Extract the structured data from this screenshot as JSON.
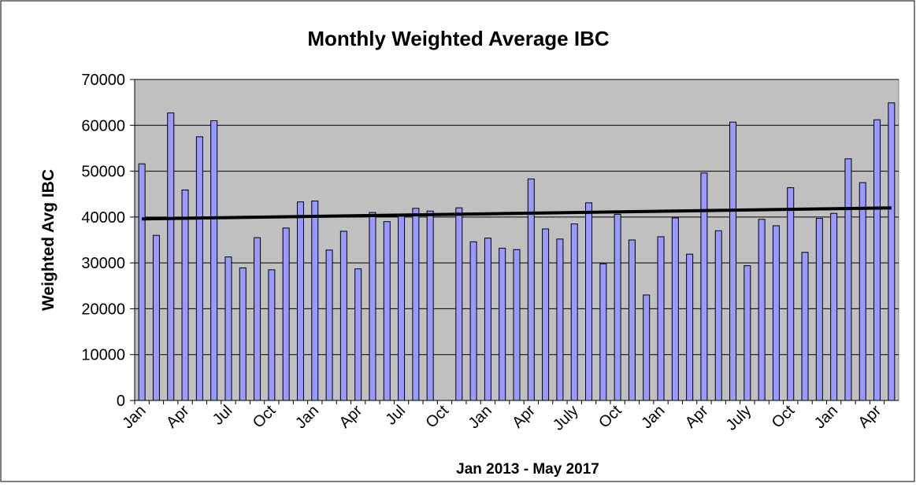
{
  "chart_data": {
    "type": "bar",
    "title": "Monthly Weighted Average IBC",
    "x_label": "Jan 2013 - May 2017",
    "y_label": "Weighted Avg IBC",
    "categories": [
      "Jan",
      null,
      null,
      "Apr",
      null,
      null,
      "Jul",
      null,
      null,
      "Oct",
      null,
      null,
      "Jan",
      null,
      null,
      "Apr",
      null,
      null,
      "Jul",
      null,
      null,
      "Oct",
      null,
      null,
      "Jan",
      null,
      null,
      "Apr",
      null,
      null,
      "July",
      null,
      null,
      "Oct",
      null,
      null,
      "Jan",
      null,
      null,
      "Apr",
      null,
      null,
      "July",
      null,
      null,
      "Oct",
      null,
      null,
      "Jan",
      null,
      null,
      "Apr",
      null
    ],
    "values": [
      51600,
      36000,
      62700,
      45900,
      57500,
      61000,
      31300,
      28900,
      35500,
      28500,
      37600,
      43300,
      43500,
      32800,
      36900,
      28700,
      41000,
      39000,
      40500,
      41900,
      41300,
      null,
      42000,
      34600,
      35400,
      33200,
      32900,
      48300,
      37400,
      35200,
      38500,
      43100,
      29800,
      40600,
      35000,
      23000,
      35700,
      39800,
      31900,
      49600,
      37000,
      60700,
      29400,
      39500,
      38100,
      46400,
      32300,
      39700,
      40800,
      52700,
      47500,
      61200,
      64900
    ],
    "color": "#9999ff",
    "trendline": {
      "start": 39600,
      "end": 42000,
      "color": "#000000"
    },
    "ylim": [
      0,
      70000
    ],
    "yticks": [
      0,
      10000,
      20000,
      30000,
      40000,
      50000,
      60000,
      70000
    ],
    "grid": true
  }
}
